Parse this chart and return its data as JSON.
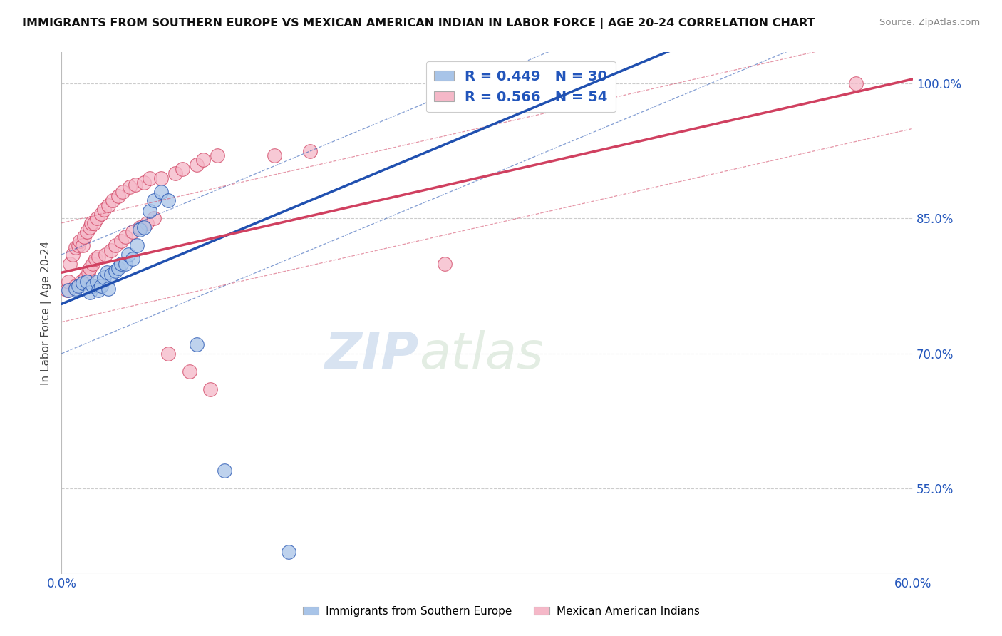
{
  "title": "IMMIGRANTS FROM SOUTHERN EUROPE VS MEXICAN AMERICAN INDIAN IN LABOR FORCE | AGE 20-24 CORRELATION CHART",
  "source": "Source: ZipAtlas.com",
  "ylabel": "In Labor Force | Age 20-24",
  "xlim": [
    0.0,
    0.6
  ],
  "ylim": [
    0.455,
    1.035
  ],
  "xticks": [
    0.0,
    0.1,
    0.2,
    0.3,
    0.4,
    0.5,
    0.6
  ],
  "xticklabels": [
    "0.0%",
    "",
    "",
    "",
    "",
    "",
    "60.0%"
  ],
  "yticks": [
    0.55,
    0.7,
    0.85,
    1.0
  ],
  "yticklabels": [
    "55.0%",
    "70.0%",
    "85.0%",
    "100.0%"
  ],
  "legend_r_blue": "R = 0.449",
  "legend_n_blue": "N = 30",
  "legend_r_pink": "R = 0.566",
  "legend_n_pink": "N = 54",
  "blue_label": "Immigrants from Southern Europe",
  "pink_label": "Mexican American Indians",
  "blue_color": "#a8c4e8",
  "pink_color": "#f5b8c8",
  "blue_line_color": "#2050b0",
  "pink_line_color": "#d04060",
  "watermark_zip": "ZIP",
  "watermark_atlas": "atlas",
  "blue_scatter_x": [
    0.005,
    0.01,
    0.012,
    0.015,
    0.018,
    0.02,
    0.022,
    0.025,
    0.026,
    0.028,
    0.03,
    0.032,
    0.033,
    0.035,
    0.038,
    0.04,
    0.042,
    0.045,
    0.047,
    0.05,
    0.053,
    0.055,
    0.058,
    0.062,
    0.065,
    0.07,
    0.075,
    0.095,
    0.115,
    0.16
  ],
  "blue_scatter_y": [
    0.77,
    0.772,
    0.775,
    0.778,
    0.78,
    0.768,
    0.775,
    0.78,
    0.77,
    0.775,
    0.785,
    0.79,
    0.772,
    0.788,
    0.792,
    0.795,
    0.8,
    0.8,
    0.81,
    0.805,
    0.82,
    0.838,
    0.84,
    0.858,
    0.87,
    0.88,
    0.87,
    0.71,
    0.57,
    0.48
  ],
  "pink_scatter_x": [
    0.004,
    0.005,
    0.006,
    0.008,
    0.01,
    0.01,
    0.012,
    0.013,
    0.014,
    0.015,
    0.016,
    0.017,
    0.018,
    0.019,
    0.02,
    0.02,
    0.021,
    0.022,
    0.023,
    0.024,
    0.025,
    0.026,
    0.028,
    0.03,
    0.031,
    0.033,
    0.035,
    0.036,
    0.038,
    0.04,
    0.042,
    0.043,
    0.045,
    0.048,
    0.05,
    0.052,
    0.055,
    0.058,
    0.06,
    0.062,
    0.065,
    0.07,
    0.075,
    0.08,
    0.085,
    0.09,
    0.095,
    0.1,
    0.105,
    0.11,
    0.15,
    0.175,
    0.27,
    0.56
  ],
  "pink_scatter_y": [
    0.77,
    0.78,
    0.8,
    0.81,
    0.818,
    0.775,
    0.82,
    0.825,
    0.78,
    0.82,
    0.83,
    0.785,
    0.835,
    0.79,
    0.84,
    0.795,
    0.845,
    0.8,
    0.845,
    0.805,
    0.85,
    0.808,
    0.855,
    0.86,
    0.81,
    0.865,
    0.815,
    0.87,
    0.82,
    0.875,
    0.825,
    0.88,
    0.83,
    0.885,
    0.835,
    0.888,
    0.84,
    0.89,
    0.845,
    0.895,
    0.85,
    0.895,
    0.7,
    0.9,
    0.905,
    0.68,
    0.91,
    0.915,
    0.66,
    0.92,
    0.92,
    0.925,
    0.8,
    1.0
  ],
  "blue_trend_x0": 0.0,
  "blue_trend_y0": 0.755,
  "blue_trend_x1": 0.32,
  "blue_trend_y1": 0.965,
  "pink_trend_x0": 0.0,
  "pink_trend_y0": 0.79,
  "pink_trend_x1": 0.6,
  "pink_trend_y1": 1.005
}
